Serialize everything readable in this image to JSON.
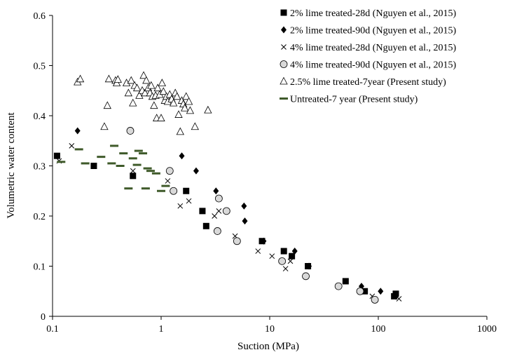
{
  "chart_data": {
    "type": "scatter",
    "xscale": "log",
    "xlim": [
      0.1,
      1000
    ],
    "ylim": [
      0,
      0.6
    ],
    "xlabel": "Suction (MPa)",
    "ylabel": "Volumetric water content",
    "x_ticks": [
      "0.1",
      "1",
      "10",
      "100",
      "1000"
    ],
    "y_ticks": [
      "0",
      "0.1",
      "0.2",
      "0.3",
      "0.4",
      "0.5",
      "0.6"
    ],
    "grid": false,
    "legend_position": "top-right",
    "series": [
      {
        "name": "2% lime treated-28d (Nguyen et al., 2015)",
        "marker": "square-filled",
        "points": [
          [
            0.11,
            0.32
          ],
          [
            0.24,
            0.3
          ],
          [
            0.55,
            0.28
          ],
          [
            1.7,
            0.25
          ],
          [
            2.4,
            0.21
          ],
          [
            2.6,
            0.18
          ],
          [
            8.5,
            0.15
          ],
          [
            13.5,
            0.13
          ],
          [
            16,
            0.12
          ],
          [
            22.5,
            0.1
          ],
          [
            50,
            0.07
          ],
          [
            75,
            0.05
          ],
          [
            140,
            0.04
          ],
          [
            145,
            0.045
          ]
        ]
      },
      {
        "name": "2% lime treated-90d (Nguyen et al., 2015)",
        "marker": "diamond-filled",
        "points": [
          [
            0.17,
            0.37
          ],
          [
            1.55,
            0.32
          ],
          [
            2.1,
            0.29
          ],
          [
            3.2,
            0.25
          ],
          [
            5.8,
            0.22
          ],
          [
            5.9,
            0.19
          ],
          [
            8.8,
            0.15
          ],
          [
            17,
            0.13
          ],
          [
            23,
            0.1
          ],
          [
            70,
            0.06
          ],
          [
            105,
            0.05
          ],
          [
            145,
            0.04
          ]
        ]
      },
      {
        "name": "4% lime treated-28d (Nguyen et al., 2015)",
        "marker": "x",
        "points": [
          [
            0.115,
            0.31
          ],
          [
            0.15,
            0.34
          ],
          [
            0.55,
            0.29
          ],
          [
            1.15,
            0.27
          ],
          [
            1.5,
            0.22
          ],
          [
            1.8,
            0.23
          ],
          [
            3.1,
            0.2
          ],
          [
            3.4,
            0.21
          ],
          [
            4.8,
            0.16
          ],
          [
            7.8,
            0.13
          ],
          [
            10.5,
            0.12
          ],
          [
            14,
            0.095
          ],
          [
            15.5,
            0.11
          ],
          [
            88,
            0.04
          ],
          [
            155,
            0.035
          ]
        ]
      },
      {
        "name": "4% lime treated-90d (Nguyen et al., 2015)",
        "marker": "circle-open",
        "points": [
          [
            0.52,
            0.37
          ],
          [
            1.2,
            0.29
          ],
          [
            1.3,
            0.25
          ],
          [
            3.4,
            0.235
          ],
          [
            4,
            0.21
          ],
          [
            3.3,
            0.17
          ],
          [
            5,
            0.15
          ],
          [
            13,
            0.11
          ],
          [
            21.5,
            0.08
          ],
          [
            43,
            0.06
          ],
          [
            68,
            0.05
          ],
          [
            93,
            0.033
          ]
        ]
      },
      {
        "name": "2.5% lime treated-7year (Present study)",
        "marker": "triangle-open",
        "points": [
          [
            0.17,
            0.467
          ],
          [
            0.18,
            0.473
          ],
          [
            0.3,
            0.378
          ],
          [
            0.32,
            0.42
          ],
          [
            0.33,
            0.473
          ],
          [
            0.38,
            0.47
          ],
          [
            0.39,
            0.465
          ],
          [
            0.4,
            0.472
          ],
          [
            0.48,
            0.465
          ],
          [
            0.5,
            0.445
          ],
          [
            0.53,
            0.47
          ],
          [
            0.55,
            0.425
          ],
          [
            0.57,
            0.46
          ],
          [
            0.6,
            0.455
          ],
          [
            0.63,
            0.44
          ],
          [
            0.67,
            0.45
          ],
          [
            0.69,
            0.48
          ],
          [
            0.71,
            0.445
          ],
          [
            0.73,
            0.47
          ],
          [
            0.76,
            0.455
          ],
          [
            0.79,
            0.445
          ],
          [
            0.81,
            0.46
          ],
          [
            0.83,
            0.438
          ],
          [
            0.86,
            0.42
          ],
          [
            0.89,
            0.44
          ],
          [
            0.91,
            0.395
          ],
          [
            0.93,
            0.455
          ],
          [
            0.97,
            0.442
          ],
          [
            1.0,
            0.395
          ],
          [
            1.02,
            0.465
          ],
          [
            1.05,
            0.448
          ],
          [
            1.08,
            0.43
          ],
          [
            1.12,
            0.438
          ],
          [
            1.15,
            0.428
          ],
          [
            1.2,
            0.442
          ],
          [
            1.25,
            0.433
          ],
          [
            1.3,
            0.425
          ],
          [
            1.35,
            0.445
          ],
          [
            1.4,
            0.438
          ],
          [
            1.45,
            0.402
          ],
          [
            1.5,
            0.368
          ],
          [
            1.55,
            0.43
          ],
          [
            1.6,
            0.423
          ],
          [
            1.65,
            0.415
          ],
          [
            1.7,
            0.438
          ],
          [
            1.8,
            0.428
          ],
          [
            1.85,
            0.41
          ],
          [
            2.05,
            0.378
          ],
          [
            2.7,
            0.411
          ]
        ]
      },
      {
        "name": "Untreated-7 year (Present study)",
        "marker": "dash",
        "points": [
          [
            0.12,
            0.308
          ],
          [
            0.175,
            0.333
          ],
          [
            0.2,
            0.305
          ],
          [
            0.28,
            0.318
          ],
          [
            0.35,
            0.305
          ],
          [
            0.37,
            0.34
          ],
          [
            0.42,
            0.3
          ],
          [
            0.45,
            0.325
          ],
          [
            0.55,
            0.315
          ],
          [
            0.5,
            0.255
          ],
          [
            0.6,
            0.302
          ],
          [
            0.62,
            0.33
          ],
          [
            0.68,
            0.325
          ],
          [
            0.72,
            0.255
          ],
          [
            0.75,
            0.295
          ],
          [
            0.8,
            0.29
          ],
          [
            0.9,
            0.285
          ],
          [
            1.0,
            0.25
          ],
          [
            1.1,
            0.26
          ]
        ]
      }
    ]
  }
}
